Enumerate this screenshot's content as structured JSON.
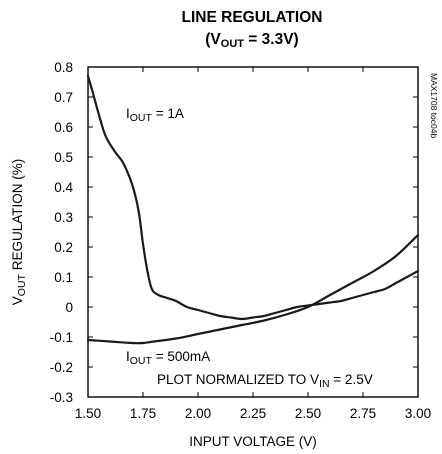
{
  "chart_data": {
    "type": "line",
    "title_line1": "LINE REGULATION",
    "title_line2": {
      "pre": "(V",
      "sub": "OUT",
      "post": " = 3.3V)"
    },
    "ylabel": {
      "pre": "V",
      "sub": "OUT",
      "post": " REGULATION (%)"
    },
    "xlabel": "INPUT VOLTAGE (V)",
    "xlim": [
      1.5,
      3.0
    ],
    "ylim": [
      -0.3,
      0.8
    ],
    "xticks": [
      "1.50",
      "1.75",
      "2.00",
      "2.25",
      "2.50",
      "2.75",
      "3.00"
    ],
    "xtick_values": [
      1.5,
      1.75,
      2.0,
      2.25,
      2.5,
      2.75,
      3.0
    ],
    "yticks": [
      "0.8",
      "0.7",
      "0.6",
      "0.5",
      "0.4",
      "0.3",
      "0.2",
      "0.1",
      "0",
      "-0.1",
      "-0.2",
      "-0.3"
    ],
    "ytick_values": [
      0.8,
      0.7,
      0.6,
      0.5,
      0.4,
      0.3,
      0.2,
      0.1,
      0,
      -0.1,
      -0.2,
      -0.3
    ],
    "grid": false,
    "series": [
      {
        "name": "I_OUT = 1A",
        "x": [
          1.5,
          1.52,
          1.55,
          1.58,
          1.62,
          1.66,
          1.7,
          1.73,
          1.75,
          1.77,
          1.79,
          1.82,
          1.86,
          1.9,
          1.95,
          2.0,
          2.05,
          2.1,
          2.15,
          2.2,
          2.25,
          2.3,
          2.35,
          2.4,
          2.45,
          2.5,
          2.55,
          2.6,
          2.65,
          2.7,
          2.75,
          2.8,
          2.85,
          2.9,
          2.95,
          3.0
        ],
        "y": [
          0.77,
          0.72,
          0.64,
          0.57,
          0.52,
          0.48,
          0.41,
          0.32,
          0.21,
          0.12,
          0.06,
          0.04,
          0.03,
          0.02,
          0.0,
          -0.01,
          -0.02,
          -0.03,
          -0.035,
          -0.04,
          -0.035,
          -0.03,
          -0.02,
          -0.01,
          0.0,
          0.005,
          0.01,
          0.015,
          0.02,
          0.03,
          0.04,
          0.05,
          0.06,
          0.08,
          0.1,
          0.12
        ]
      },
      {
        "name": "I_OUT = 500mA",
        "x": [
          1.5,
          1.6,
          1.7,
          1.75,
          1.8,
          1.9,
          2.0,
          2.1,
          2.2,
          2.3,
          2.4,
          2.5,
          2.6,
          2.7,
          2.8,
          2.9,
          3.0
        ],
        "y": [
          -0.11,
          -0.115,
          -0.12,
          -0.12,
          -0.115,
          -0.105,
          -0.09,
          -0.075,
          -0.06,
          -0.045,
          -0.025,
          0.0,
          0.04,
          0.08,
          0.12,
          0.17,
          0.24
        ]
      }
    ],
    "annotations": {
      "iout_1a": {
        "pre": "I",
        "sub": "OUT",
        "post": " = 1A"
      },
      "iout_500ma": {
        "pre": "I",
        "sub": "OUT",
        "post": " = 500mA"
      },
      "normalized": {
        "pre": "PLOT NORMALIZED TO V",
        "sub": "IN",
        "post": " = 2.5V"
      },
      "side_code": "MAX1708 toc04b"
    },
    "line_color": "#1a1a1a"
  }
}
